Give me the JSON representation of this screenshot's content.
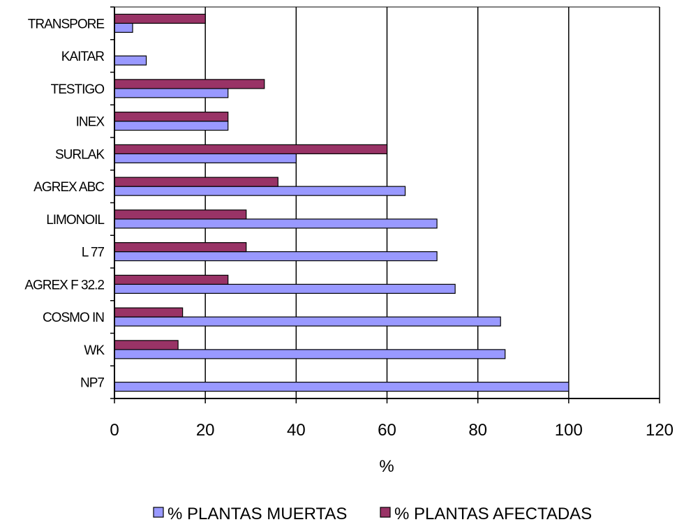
{
  "chart_data": {
    "type": "bar",
    "orientation": "horizontal",
    "categories": [
      "NP7",
      "WK",
      "COSMO IN",
      "AGREX F 32.2",
      "L 77",
      "LIMONOIL",
      "AGREX ABC",
      "SURLAK",
      "INEX",
      "TESTIGO",
      "KAITAR",
      "TRANSPORE"
    ],
    "series": [
      {
        "name": "% PLANTAS MUERTAS",
        "color": "#9999ff",
        "values": [
          100,
          86,
          85,
          75,
          71,
          71,
          64,
          40,
          25,
          25,
          7,
          4
        ]
      },
      {
        "name": "% PLANTAS AFECTADAS",
        "color": "#993366",
        "values": [
          0,
          14,
          15,
          25,
          29,
          29,
          36,
          60,
          25,
          33,
          0,
          20
        ]
      }
    ],
    "xlabel": "%",
    "xlim": [
      0,
      120
    ],
    "xticks": [
      "0",
      "20",
      "40",
      "60",
      "80",
      "100",
      "120"
    ],
    "grid": "vertical",
    "legend": "bottom"
  }
}
